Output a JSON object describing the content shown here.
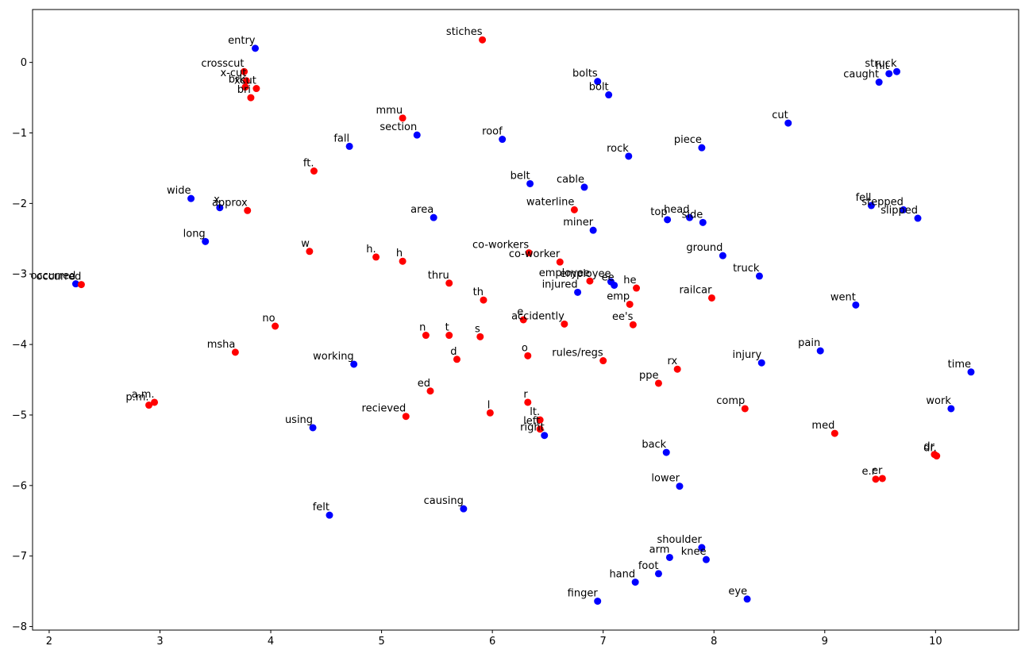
{
  "chart_data": {
    "type": "scatter",
    "title": "",
    "xlabel": "",
    "ylabel": "",
    "xlim": [
      1.85,
      10.75
    ],
    "ylim": [
      -8.05,
      0.75
    ],
    "xticks": [
      2,
      3,
      4,
      5,
      6,
      7,
      8,
      9,
      10
    ],
    "yticks": [
      0,
      -1,
      -2,
      -3,
      -4,
      -5,
      -6,
      -7,
      -8
    ],
    "xtick_labels": [
      "2",
      "3",
      "4",
      "5",
      "6",
      "7",
      "8",
      "9",
      "10"
    ],
    "ytick_labels": [
      "0",
      "−1",
      "−2",
      "−3",
      "−4",
      "−5",
      "−6",
      "−7",
      "−8"
    ],
    "grid": false,
    "legend": false,
    "colors": {
      "blue": "#0000ff",
      "red": "#ff0000"
    },
    "series": [
      {
        "color": "blue",
        "points": [
          {
            "label": "entry",
            "x": 3.86,
            "y": 0.2
          },
          {
            "label": "fall",
            "x": 4.71,
            "y": -1.19
          },
          {
            "label": "section",
            "x": 5.32,
            "y": -1.03
          },
          {
            "label": "roof",
            "x": 6.09,
            "y": -1.09
          },
          {
            "label": "bolts",
            "x": 6.95,
            "y": -0.27
          },
          {
            "label": "bolt",
            "x": 7.05,
            "y": -0.46
          },
          {
            "label": "struck",
            "x": 9.65,
            "y": -0.13
          },
          {
            "label": "hit",
            "x": 9.58,
            "y": -0.16
          },
          {
            "label": "caught",
            "x": 9.49,
            "y": -0.28
          },
          {
            "label": "cut",
            "x": 8.67,
            "y": -0.86
          },
          {
            "label": "rock",
            "x": 7.23,
            "y": -1.33
          },
          {
            "label": "piece",
            "x": 7.89,
            "y": -1.21
          },
          {
            "label": "belt",
            "x": 6.34,
            "y": -1.72
          },
          {
            "label": "cable",
            "x": 6.83,
            "y": -1.77
          },
          {
            "label": "wide",
            "x": 3.28,
            "y": -1.93
          },
          {
            "label": "x",
            "x": 3.54,
            "y": -2.06
          },
          {
            "label": "area",
            "x": 5.47,
            "y": -2.2
          },
          {
            "label": "long",
            "x": 3.41,
            "y": -2.54
          },
          {
            "label": "miner",
            "x": 6.91,
            "y": -2.38
          },
          {
            "label": "top",
            "x": 7.58,
            "y": -2.23
          },
          {
            "label": "head",
            "x": 7.78,
            "y": -2.2
          },
          {
            "label": "side",
            "x": 7.9,
            "y": -2.27
          },
          {
            "label": "fell",
            "x": 9.42,
            "y": -2.03
          },
          {
            "label": "stepped",
            "x": 9.71,
            "y": -2.09
          },
          {
            "label": "slipped",
            "x": 9.84,
            "y": -2.21
          },
          {
            "label": "ground",
            "x": 8.08,
            "y": -2.74
          },
          {
            "label": "occurred",
            "x": 2.24,
            "y": -3.14
          },
          {
            "label": "truck",
            "x": 8.41,
            "y": -3.03
          },
          {
            "label": "employee",
            "x": 7.07,
            "y": -3.11
          },
          {
            "label": "ee",
            "x": 7.1,
            "y": -3.16
          },
          {
            "label": "injured",
            "x": 6.77,
            "y": -3.26
          },
          {
            "label": "went",
            "x": 9.28,
            "y": -3.44
          },
          {
            "label": "working",
            "x": 4.75,
            "y": -4.28
          },
          {
            "label": "pain",
            "x": 8.96,
            "y": -4.09
          },
          {
            "label": "injury",
            "x": 8.43,
            "y": -4.26
          },
          {
            "label": "time",
            "x": 10.32,
            "y": -4.39
          },
          {
            "label": "work",
            "x": 10.14,
            "y": -4.91
          },
          {
            "label": "using",
            "x": 4.38,
            "y": -5.18
          },
          {
            "label": "right",
            "x": 6.47,
            "y": -5.29
          },
          {
            "label": "back",
            "x": 7.57,
            "y": -5.53
          },
          {
            "label": "lower",
            "x": 7.69,
            "y": -6.01
          },
          {
            "label": "felt",
            "x": 4.53,
            "y": -6.42
          },
          {
            "label": "causing",
            "x": 5.74,
            "y": -6.33
          },
          {
            "label": "shoulder",
            "x": 7.89,
            "y": -6.88
          },
          {
            "label": "arm",
            "x": 7.6,
            "y": -7.02
          },
          {
            "label": "knee",
            "x": 7.93,
            "y": -7.05
          },
          {
            "label": "foot",
            "x": 7.5,
            "y": -7.25
          },
          {
            "label": "hand",
            "x": 7.29,
            "y": -7.37
          },
          {
            "label": "finger",
            "x": 6.95,
            "y": -7.64
          },
          {
            "label": "eye",
            "x": 8.3,
            "y": -7.61
          }
        ]
      },
      {
        "color": "red",
        "points": [
          {
            "label": "stiches",
            "x": 5.91,
            "y": 0.32
          },
          {
            "label": "crosscut",
            "x": 3.76,
            "y": -0.13
          },
          {
            "label": "x-cut",
            "x": 3.78,
            "y": -0.26
          },
          {
            "label": "xcut",
            "x": 3.87,
            "y": -0.37
          },
          {
            "label": "brk",
            "x": 3.77,
            "y": -0.35
          },
          {
            "label": "bri",
            "x": 3.82,
            "y": -0.5
          },
          {
            "label": "mmu",
            "x": 5.19,
            "y": -0.79
          },
          {
            "label": "ft.",
            "x": 4.39,
            "y": -1.54
          },
          {
            "label": "approx",
            "x": 3.79,
            "y": -2.1
          },
          {
            "label": "waterline",
            "x": 6.74,
            "y": -2.09
          },
          {
            "label": "w",
            "x": 4.35,
            "y": -2.68
          },
          {
            "label": "h.",
            "x": 4.95,
            "y": -2.76
          },
          {
            "label": "h",
            "x": 5.19,
            "y": -2.82
          },
          {
            "label": "co-workers",
            "x": 6.33,
            "y": -2.7
          },
          {
            "label": "co-worker",
            "x": 6.61,
            "y": -2.83
          },
          {
            "label": "occurred",
            "x": 2.29,
            "y": -3.15
          },
          {
            "label": "thru",
            "x": 5.61,
            "y": -3.13
          },
          {
            "label": "employee",
            "x": 6.88,
            "y": -3.1
          },
          {
            "label": "he",
            "x": 7.3,
            "y": -3.2
          },
          {
            "label": "th",
            "x": 5.92,
            "y": -3.37
          },
          {
            "label": "emp",
            "x": 7.24,
            "y": -3.43
          },
          {
            "label": "railcar",
            "x": 7.98,
            "y": -3.34
          },
          {
            "label": "accidently",
            "x": 6.65,
            "y": -3.71
          },
          {
            "label": "e",
            "x": 6.28,
            "y": -3.65
          },
          {
            "label": "ee's",
            "x": 7.27,
            "y": -3.72
          },
          {
            "label": "no",
            "x": 4.04,
            "y": -3.74
          },
          {
            "label": "n",
            "x": 5.4,
            "y": -3.87
          },
          {
            "label": "t",
            "x": 5.61,
            "y": -3.87
          },
          {
            "label": "s",
            "x": 5.89,
            "y": -3.89
          },
          {
            "label": "msha",
            "x": 3.68,
            "y": -4.11
          },
          {
            "label": "d",
            "x": 5.68,
            "y": -4.21
          },
          {
            "label": "o",
            "x": 6.32,
            "y": -4.16
          },
          {
            "label": "rules/regs",
            "x": 7.0,
            "y": -4.23
          },
          {
            "label": "rx",
            "x": 7.67,
            "y": -4.35
          },
          {
            "label": "ppe",
            "x": 7.5,
            "y": -4.55
          },
          {
            "label": "ed",
            "x": 5.44,
            "y": -4.66
          },
          {
            "label": "a.m.",
            "x": 2.95,
            "y": -4.82
          },
          {
            "label": "p.m.",
            "x": 2.9,
            "y": -4.86
          },
          {
            "label": "r",
            "x": 6.32,
            "y": -4.82
          },
          {
            "label": "comp",
            "x": 8.28,
            "y": -4.91
          },
          {
            "label": "l",
            "x": 5.98,
            "y": -4.97
          },
          {
            "label": "recieved",
            "x": 5.22,
            "y": -5.02
          },
          {
            "label": "lt.",
            "x": 6.43,
            "y": -5.07
          },
          {
            "label": "left",
            "x": 6.43,
            "y": -5.2
          },
          {
            "label": "med",
            "x": 9.09,
            "y": -5.26
          },
          {
            "label": "dr",
            "x": 9.99,
            "y": -5.56
          },
          {
            "label": "dr.",
            "x": 10.01,
            "y": -5.58
          },
          {
            "label": "e.r",
            "x": 9.46,
            "y": -5.91
          },
          {
            "label": "er",
            "x": 9.52,
            "y": -5.9
          }
        ]
      }
    ]
  }
}
